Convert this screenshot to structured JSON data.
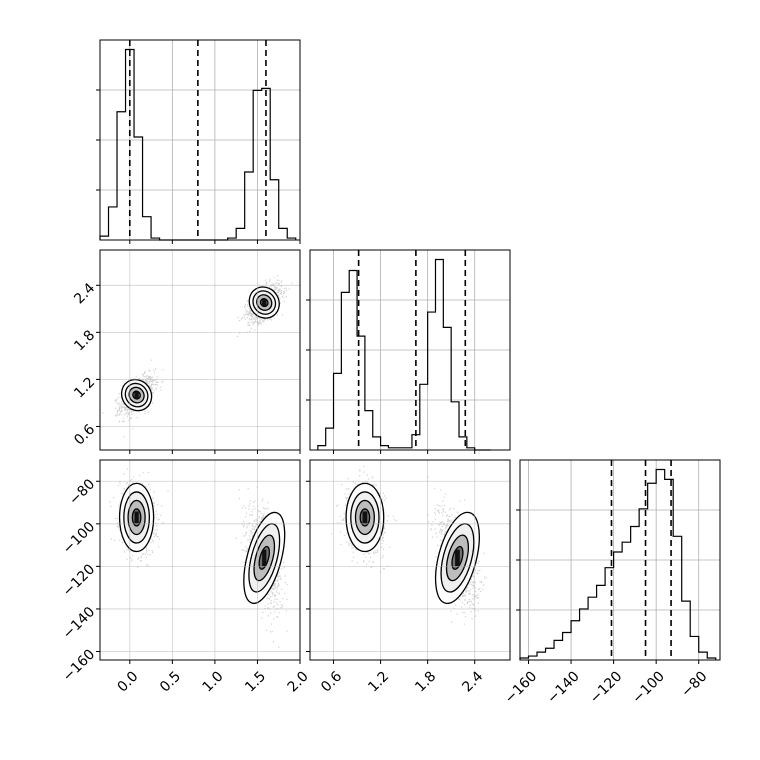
{
  "chart_data": {
    "type": "corner",
    "title": "",
    "grid": true,
    "parameters": [
      {
        "label": "",
        "range": [
          -0.35,
          2.0
        ],
        "ticks": [
          0.0,
          0.5,
          1.0,
          1.5,
          2.0
        ],
        "tick_labels": [
          "0.0",
          "0.5",
          "1.0",
          "1.5",
          "2.0"
        ],
        "quantile_lines": [
          0.0,
          0.8,
          1.6
        ],
        "histogram": {
          "edges": [
            -0.35,
            -0.25,
            -0.15,
            -0.05,
            0.05,
            0.15,
            0.25,
            0.35,
            0.45,
            0.55,
            0.65,
            0.75,
            0.85,
            0.95,
            1.05,
            1.15,
            1.25,
            1.35,
            1.45,
            1.55,
            1.65,
            1.75,
            1.85,
            1.95
          ],
          "counts": [
            0.02,
            0.17,
            0.66,
            0.98,
            0.53,
            0.12,
            0.01,
            0,
            0,
            0,
            0,
            0,
            0,
            0,
            0,
            0.01,
            0.06,
            0.35,
            0.77,
            0.78,
            0.31,
            0.06,
            0.01
          ]
        }
      },
      {
        "label": "",
        "range": [
          0.3,
          2.85
        ],
        "ticks": [
          0.6,
          1.2,
          1.8,
          2.4
        ],
        "tick_labels": [
          "0.6",
          "1.2",
          "1.8",
          "2.4"
        ],
        "quantile_lines": [
          0.92,
          1.65,
          2.28
        ],
        "histogram": {
          "edges": [
            0.4,
            0.5,
            0.6,
            0.7,
            0.8,
            0.9,
            1.0,
            1.1,
            1.2,
            1.3,
            1.4,
            1.5,
            1.6,
            1.7,
            1.8,
            1.9,
            2.0,
            2.1,
            2.2,
            2.3,
            2.4,
            2.5,
            2.6
          ],
          "counts": [
            0.02,
            0.1,
            0.35,
            0.72,
            0.82,
            0.52,
            0.18,
            0.06,
            0.02,
            0.01,
            0.01,
            0.01,
            0.07,
            0.3,
            0.63,
            0.87,
            0.56,
            0.22,
            0.06,
            0.01,
            0,
            0
          ]
        }
      },
      {
        "label": "",
        "range": [
          -164,
          -70
        ],
        "ticks": [
          -160,
          -140,
          -120,
          -100,
          -80
        ],
        "tick_labels": [
          "−160",
          "−140",
          "−120",
          "−100",
          "−80"
        ],
        "quantile_lines": [
          -121,
          -105,
          -93
        ],
        "histogram": {
          "edges": [
            -164,
            -160,
            -156,
            -152,
            -148,
            -144,
            -140,
            -136,
            -132,
            -128,
            -124,
            -120,
            -116,
            -112,
            -108,
            -104,
            -100,
            -96,
            -92,
            -88,
            -84,
            -80,
            -76,
            -72
          ],
          "counts": [
            0.01,
            0.02,
            0.04,
            0.06,
            0.1,
            0.14,
            0.2,
            0.26,
            0.32,
            0.38,
            0.47,
            0.55,
            0.6,
            0.68,
            0.77,
            0.9,
            0.97,
            0.92,
            0.63,
            0.3,
            0.12,
            0.04,
            0.01
          ]
        }
      }
    ],
    "clusters": [
      {
        "mean": [
          0.08,
          1.0,
          -97
        ],
        "sd": [
          0.1,
          0.12,
          8
        ]
      },
      {
        "mean": [
          1.58,
          2.18,
          -116
        ],
        "sd": [
          0.1,
          0.12,
          11
        ]
      }
    ]
  }
}
